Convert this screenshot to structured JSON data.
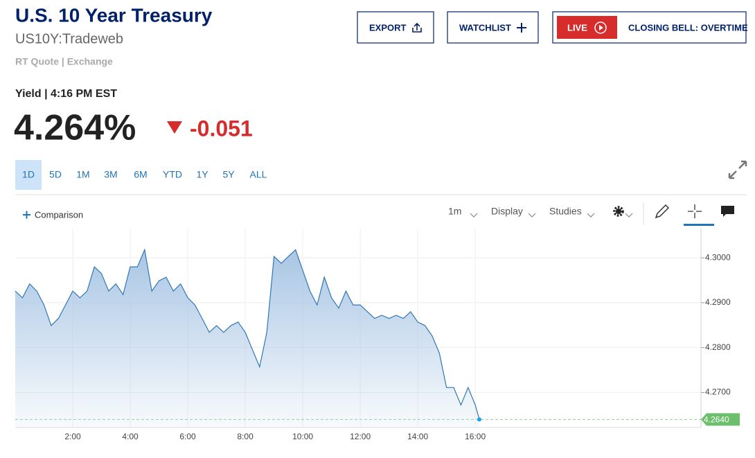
{
  "header": {
    "title": "U.S. 10 Year Treasury",
    "symbol": "US10Y:Tradeweb",
    "quote_source": "RT Quote | Exchange"
  },
  "actions": {
    "export": "EXPORT",
    "watchlist": "WATCHLIST",
    "live": "LIVE",
    "live_show": "CLOSING BELL: OVERTIME"
  },
  "quote": {
    "label": "Yield | 4:16 PM EST",
    "last": "4.264%",
    "change": "-0.051"
  },
  "range_tabs": [
    "1D",
    "5D",
    "1M",
    "3M",
    "6M",
    "YTD",
    "1Y",
    "5Y",
    "ALL"
  ],
  "toolbar": {
    "comparison": "Comparison",
    "interval": "1m",
    "display": "Display",
    "studies": "Studies"
  },
  "chart_data": {
    "type": "line",
    "color": "#2f77b4",
    "grid": true,
    "x": [
      0,
      0.25,
      0.5,
      0.75,
      1,
      1.25,
      1.5,
      1.75,
      2,
      2.25,
      2.5,
      2.75,
      3,
      3.25,
      3.5,
      3.75,
      4,
      4.25,
      4.5,
      4.75,
      5,
      5.25,
      5.5,
      5.75,
      6,
      6.25,
      6.5,
      6.75,
      7,
      7.25,
      7.5,
      7.75,
      8,
      8.25,
      8.5,
      8.75,
      9,
      9.25,
      9.5,
      9.75,
      10,
      10.25,
      10.5,
      10.75,
      11,
      11.25,
      11.5,
      11.75,
      12,
      12.25,
      12.5,
      12.75,
      13,
      13.25,
      13.5,
      13.75,
      14,
      14.25,
      14.5,
      14.75,
      15,
      15.25,
      15.5,
      15.75,
      16,
      16.14
    ],
    "values": [
      4.2926,
      4.2911,
      4.2942,
      4.2926,
      4.2895,
      4.2849,
      4.2865,
      4.2895,
      4.2926,
      4.2911,
      4.2926,
      4.298,
      4.2965,
      4.2926,
      4.2942,
      4.2918,
      4.298,
      4.298,
      4.3018,
      4.2926,
      4.2949,
      4.2957,
      4.2926,
      4.2942,
      4.2911,
      4.2895,
      4.2865,
      4.2834,
      4.2849,
      4.2834,
      4.2849,
      4.2857,
      4.2834,
      4.2795,
      4.2757,
      4.2834,
      4.3003,
      4.2988,
      4.3003,
      4.3018,
      4.2972,
      4.2926,
      4.2895,
      4.2957,
      4.2911,
      4.2888,
      4.2926,
      4.2895,
      4.2895,
      4.288,
      4.2865,
      4.2872,
      4.2865,
      4.2872,
      4.2865,
      4.288,
      4.2857,
      4.2849,
      4.2826,
      4.2788,
      4.2711,
      4.2711,
      4.2672,
      4.2711,
      4.2672,
      4.264
    ],
    "last_value_label": "4.2640",
    "xlim": [
      0,
      23.85
    ],
    "ylim": [
      4.2622,
      4.3065
    ],
    "xticks": [
      {
        "value": 2,
        "label": "2:00"
      },
      {
        "value": 4,
        "label": "4:00"
      },
      {
        "value": 6,
        "label": "6:00"
      },
      {
        "value": 8,
        "label": "8:00"
      },
      {
        "value": 10,
        "label": "10:00"
      },
      {
        "value": 12,
        "label": "12:00"
      },
      {
        "value": 14,
        "label": "14:00"
      },
      {
        "value": 16,
        "label": "16:00"
      }
    ],
    "yticks": [
      {
        "value": 4.27,
        "label": "4.2700"
      },
      {
        "value": 4.28,
        "label": "4.2800"
      },
      {
        "value": 4.29,
        "label": "4.2900"
      },
      {
        "value": 4.3,
        "label": "4.3000"
      }
    ]
  }
}
